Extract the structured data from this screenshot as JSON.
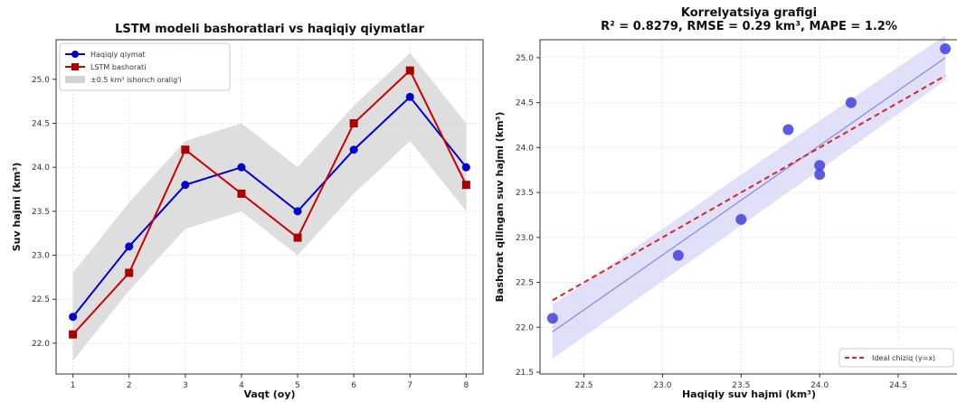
{
  "chart_data": [
    {
      "type": "line",
      "title": "LSTM modeli bashoratlari vs haqiqiy qiymatlar",
      "xlabel": "Vaqt (oy)",
      "ylabel": "Suv hajmi (km³)",
      "x": [
        1,
        2,
        3,
        4,
        5,
        6,
        7,
        8
      ],
      "xlim": [
        0.7,
        8.3
      ],
      "ylim": [
        21.65,
        25.45
      ],
      "xticks": [
        1,
        2,
        3,
        4,
        5,
        6,
        7,
        8
      ],
      "yticks": [
        "22.0",
        "22.5",
        "23.0",
        "23.5",
        "24.0",
        "24.5",
        "25.0"
      ],
      "band": {
        "name": "±0.5 km³ ishonch oralig'i",
        "color": "#d3d3d3",
        "halfwidth": 0.5
      },
      "series": [
        {
          "name": "Haqiqiy qiymat",
          "color": "#0000cc",
          "marker": "circle",
          "values": [
            22.3,
            23.1,
            23.8,
            24.0,
            23.5,
            24.2,
            24.8,
            24.0
          ]
        },
        {
          "name": "LSTM bashorati",
          "color": "#cc0000",
          "marker": "square",
          "values": [
            22.1,
            22.8,
            24.2,
            23.7,
            23.2,
            24.5,
            25.1,
            23.8
          ]
        }
      ],
      "grid": true,
      "legend": "top-left"
    },
    {
      "type": "scatter",
      "title": "Korrelyatsiya grafigi",
      "subtitle": "R² = 0.8279, RMSE = 0.29 km³, MAPE = 1.2%",
      "xlabel": "Haqiqiy suv hajmi (km³)",
      "ylabel": "Bashorat qilingan suv hajmi (km³)",
      "xlim": [
        22.22,
        24.88
      ],
      "ylim": [
        21.48,
        25.2
      ],
      "xticks": [
        "22.5",
        "23.0",
        "23.5",
        "24.0",
        "24.5"
      ],
      "yticks": [
        "21.5",
        "22.0",
        "22.5",
        "23.0",
        "23.5",
        "24.0",
        "24.5",
        "25.0"
      ],
      "points": {
        "color": "#4040dd",
        "x": [
          22.3,
          23.1,
          23.8,
          24.0,
          23.5,
          24.2,
          24.8,
          24.0
        ],
        "y": [
          22.1,
          22.8,
          24.2,
          23.7,
          23.2,
          24.5,
          25.1,
          23.8
        ]
      },
      "ideal_line": {
        "name": "Ideal chiziq (y=x)",
        "color": "#dd2222",
        "from": [
          22.3,
          22.3
        ],
        "to": [
          24.8,
          24.8
        ]
      },
      "fit_line": {
        "color": "#8888dd",
        "from": [
          22.3,
          21.95
        ],
        "to": [
          24.8,
          25.0
        ]
      },
      "fit_band": {
        "color": "#ccccf5",
        "lower": [
          [
            22.3,
            21.65
          ],
          [
            24.0,
            23.75
          ],
          [
            24.8,
            24.75
          ]
        ],
        "upper": [
          [
            22.3,
            22.25
          ],
          [
            24.0,
            24.3
          ],
          [
            24.8,
            25.25
          ]
        ]
      },
      "grid": true,
      "legend": "bottom-right"
    }
  ]
}
